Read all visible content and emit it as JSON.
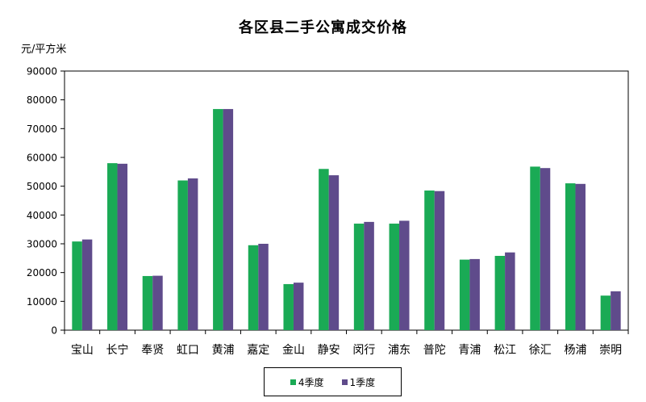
{
  "chart_data": {
    "type": "bar",
    "title": "各区县二手公寓成交价格",
    "ylabel": "元/平方米",
    "xlabel": "",
    "ylim": [
      0,
      90000
    ],
    "ytick_step": 10000,
    "yticks": [
      "0",
      "10000",
      "20000",
      "30000",
      "40000",
      "50000",
      "60000",
      "70000",
      "80000",
      "90000"
    ],
    "categories": [
      "宝山",
      "长宁",
      "奉贤",
      "虹口",
      "黄浦",
      "嘉定",
      "金山",
      "静安",
      "闵行",
      "浦东",
      "普陀",
      "青浦",
      "松江",
      "徐汇",
      "杨浦",
      "崇明"
    ],
    "series": [
      {
        "name": "4季度",
        "color": "#1aaa55",
        "values": [
          30800,
          58000,
          18800,
          52000,
          76800,
          29500,
          16000,
          56000,
          37000,
          37000,
          48500,
          24500,
          25800,
          56800,
          51000,
          12000
        ]
      },
      {
        "name": "1季度",
        "color": "#5f4b8b",
        "values": [
          31500,
          57800,
          18900,
          52700,
          76800,
          30000,
          16500,
          53800,
          37600,
          38000,
          48300,
          24700,
          27000,
          56300,
          50800,
          13500
        ]
      }
    ],
    "legend_position": "bottom-center",
    "grid": false
  }
}
